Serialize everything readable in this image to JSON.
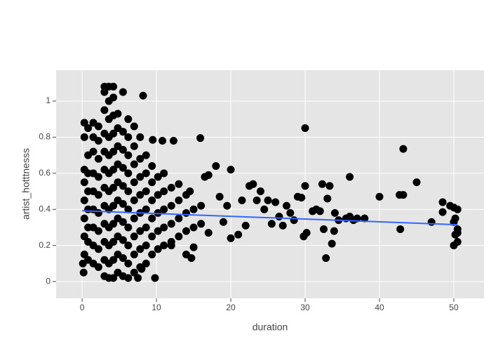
{
  "chart_data": {
    "type": "scatter",
    "x_label": "duration",
    "y_label": "artist_hotttnesss",
    "xlim": [
      -3.5,
      54.06
    ],
    "ylim": [
      -0.093,
      1.171
    ],
    "xticks": [
      0,
      10,
      20,
      30,
      40,
      50
    ],
    "yticks": [
      0,
      0.2,
      0.4,
      0.6,
      0.8,
      1
    ],
    "grid": true,
    "color": "#000000",
    "points": [
      [
        0.3,
        0.15
      ],
      [
        0.3,
        0.25
      ],
      [
        0.3,
        0.35
      ],
      [
        0.3,
        0.45
      ],
      [
        0.3,
        0.55
      ],
      [
        0.3,
        0.62
      ],
      [
        0.3,
        0.8
      ],
      [
        0.3,
        0.88
      ],
      [
        0.8,
        0.12
      ],
      [
        0.8,
        0.22
      ],
      [
        0.8,
        0.3
      ],
      [
        0.8,
        0.4
      ],
      [
        0.8,
        0.5
      ],
      [
        0.8,
        0.6
      ],
      [
        0.8,
        0.7
      ],
      [
        0.8,
        0.85
      ],
      [
        1.5,
        0.1
      ],
      [
        1.5,
        0.2
      ],
      [
        1.5,
        0.3
      ],
      [
        1.5,
        0.4
      ],
      [
        1.5,
        0.5
      ],
      [
        1.5,
        0.6
      ],
      [
        1.5,
        0.72
      ],
      [
        1.5,
        0.8
      ],
      [
        1.5,
        0.88
      ],
      [
        2.2,
        0.08
      ],
      [
        2.2,
        0.18
      ],
      [
        2.2,
        0.28
      ],
      [
        2.2,
        0.38
      ],
      [
        2.2,
        0.48
      ],
      [
        2.2,
        0.58
      ],
      [
        2.2,
        0.68
      ],
      [
        2.2,
        0.78
      ],
      [
        2.2,
        0.86
      ],
      [
        3,
        0.03
      ],
      [
        3,
        0.12
      ],
      [
        3,
        0.22
      ],
      [
        3,
        0.32
      ],
      [
        3,
        0.42
      ],
      [
        3,
        0.52
      ],
      [
        3,
        0.62
      ],
      [
        3,
        0.72
      ],
      [
        3,
        0.82
      ],
      [
        3,
        0.95
      ],
      [
        3,
        1.05
      ],
      [
        3,
        1.08
      ],
      [
        3.6,
        0.02
      ],
      [
        3.6,
        0.1
      ],
      [
        3.6,
        0.2
      ],
      [
        3.6,
        0.3
      ],
      [
        3.6,
        0.4
      ],
      [
        3.6,
        0.5
      ],
      [
        3.6,
        0.6
      ],
      [
        3.6,
        0.7
      ],
      [
        3.6,
        0.8
      ],
      [
        3.6,
        0.9
      ],
      [
        3.6,
        1.0
      ],
      [
        3.6,
        1.08
      ],
      [
        4.2,
        0.02
      ],
      [
        4.2,
        0.12
      ],
      [
        4.2,
        0.22
      ],
      [
        4.2,
        0.32
      ],
      [
        4.2,
        0.42
      ],
      [
        4.2,
        0.52
      ],
      [
        4.2,
        0.62
      ],
      [
        4.2,
        0.72
      ],
      [
        4.2,
        0.82
      ],
      [
        4.2,
        0.92
      ],
      [
        4.2,
        1.02
      ],
      [
        4.2,
        1.08
      ],
      [
        4.8,
        0.05
      ],
      [
        4.8,
        0.15
      ],
      [
        4.8,
        0.25
      ],
      [
        4.8,
        0.35
      ],
      [
        4.8,
        0.45
      ],
      [
        4.8,
        0.55
      ],
      [
        4.8,
        0.65
      ],
      [
        4.8,
        0.75
      ],
      [
        4.8,
        0.85
      ],
      [
        4.8,
        0.93
      ],
      [
        5.5,
        0.03
      ],
      [
        5.5,
        0.13
      ],
      [
        5.5,
        0.23
      ],
      [
        5.5,
        0.33
      ],
      [
        5.5,
        0.43
      ],
      [
        5.5,
        0.53
      ],
      [
        5.5,
        0.63
      ],
      [
        5.5,
        0.73
      ],
      [
        5.5,
        0.83
      ],
      [
        5.5,
        1.05
      ],
      [
        6.2,
        0.02
      ],
      [
        6.2,
        0.1
      ],
      [
        6.2,
        0.2
      ],
      [
        6.2,
        0.3
      ],
      [
        6.2,
        0.4
      ],
      [
        6.2,
        0.5
      ],
      [
        6.2,
        0.6
      ],
      [
        6.2,
        0.7
      ],
      [
        6.2,
        0.8
      ],
      [
        6.2,
        0.9
      ],
      [
        7,
        0.05
      ],
      [
        7,
        0.15
      ],
      [
        7,
        0.25
      ],
      [
        7,
        0.35
      ],
      [
        7,
        0.45
      ],
      [
        7,
        0.55
      ],
      [
        7,
        0.65
      ],
      [
        7,
        0.75
      ],
      [
        7,
        0.86
      ],
      [
        7.8,
        0.08
      ],
      [
        7.8,
        0.18
      ],
      [
        7.8,
        0.28
      ],
      [
        7.8,
        0.38
      ],
      [
        7.8,
        0.48
      ],
      [
        7.8,
        0.58
      ],
      [
        7.8,
        0.68
      ],
      [
        7.8,
        0.8
      ],
      [
        8.6,
        0.1
      ],
      [
        8.6,
        0.2
      ],
      [
        8.6,
        0.3
      ],
      [
        8.6,
        0.4
      ],
      [
        8.6,
        0.5
      ],
      [
        8.6,
        0.6
      ],
      [
        8.6,
        0.7
      ],
      [
        9.4,
        0.15
      ],
      [
        9.4,
        0.25
      ],
      [
        9.4,
        0.35
      ],
      [
        9.4,
        0.45
      ],
      [
        9.4,
        0.55
      ],
      [
        9.4,
        0.64
      ],
      [
        10.2,
        0.18
      ],
      [
        10.2,
        0.28
      ],
      [
        10.2,
        0.38
      ],
      [
        10.2,
        0.48
      ],
      [
        10.2,
        0.58
      ],
      [
        11,
        0.2
      ],
      [
        11,
        0.3
      ],
      [
        11,
        0.4
      ],
      [
        11,
        0.5
      ],
      [
        11,
        0.6
      ],
      [
        12,
        0.22
      ],
      [
        12,
        0.32
      ],
      [
        12,
        0.42
      ],
      [
        12,
        0.52
      ],
      [
        13,
        0.25
      ],
      [
        13,
        0.35
      ],
      [
        13,
        0.45
      ],
      [
        14,
        0.28
      ],
      [
        14,
        0.38
      ],
      [
        14,
        0.48
      ],
      [
        15,
        0.3
      ],
      [
        15,
        0.4
      ],
      [
        16,
        0.32
      ],
      [
        16,
        0.42
      ],
      [
        8.2,
        1.03
      ],
      [
        15.9,
        0.795
      ],
      [
        20,
        0.62
      ],
      [
        18,
        0.64
      ],
      [
        12.3,
        0.78
      ],
      [
        10.8,
        0.78
      ],
      [
        9.5,
        0.785
      ],
      [
        30,
        0.85
      ],
      [
        43.2,
        0.735
      ],
      [
        36,
        0.58
      ],
      [
        45,
        0.55
      ],
      [
        40,
        0.47
      ],
      [
        42.7,
        0.48
      ],
      [
        43.2,
        0.48
      ],
      [
        42.8,
        0.29
      ],
      [
        48.5,
        0.44
      ],
      [
        48.5,
        0.385
      ],
      [
        49.5,
        0.42
      ],
      [
        50,
        0.41
      ],
      [
        50.5,
        0.4
      ],
      [
        50.2,
        0.35
      ],
      [
        50,
        0.33
      ],
      [
        50.5,
        0.29
      ],
      [
        50.2,
        0.26
      ],
      [
        50.5,
        0.22
      ],
      [
        50,
        0.2
      ],
      [
        50.5,
        0.27
      ],
      [
        47,
        0.33
      ],
      [
        32.8,
        0.13
      ],
      [
        33.6,
        0.21
      ],
      [
        32.5,
        0.29
      ],
      [
        33.9,
        0.28
      ],
      [
        29.8,
        0.25
      ],
      [
        30.2,
        0.27
      ],
      [
        32.3,
        0.54
      ],
      [
        33.3,
        0.53
      ],
      [
        30,
        0.53
      ],
      [
        29,
        0.47
      ],
      [
        29.5,
        0.465
      ],
      [
        31.5,
        0.4
      ],
      [
        32,
        0.39
      ],
      [
        33,
        0.46
      ],
      [
        34,
        0.38
      ],
      [
        35.5,
        0.35
      ],
      [
        36,
        0.36
      ],
      [
        37,
        0.35
      ],
      [
        36.5,
        0.34
      ],
      [
        27.5,
        0.42
      ],
      [
        26,
        0.44
      ],
      [
        28,
        0.38
      ],
      [
        27,
        0.31
      ],
      [
        26.5,
        0.36
      ],
      [
        25,
        0.45
      ],
      [
        24,
        0.5
      ],
      [
        23,
        0.54
      ],
      [
        22.5,
        0.53
      ],
      [
        23.5,
        0.45
      ],
      [
        21,
        0.26
      ],
      [
        20,
        0.24
      ],
      [
        22,
        0.31
      ],
      [
        19,
        0.33
      ],
      [
        17,
        0.27
      ],
      [
        14.7,
        0.13
      ],
      [
        14,
        0.15
      ],
      [
        9.8,
        0.02
      ],
      [
        7.5,
        0.02
      ],
      [
        0.2,
        0.05
      ],
      [
        0.1,
        0.1
      ],
      [
        8,
        0.07
      ],
      [
        12,
        0.2
      ],
      [
        15,
        0.19
      ],
      [
        16.5,
        0.58
      ],
      [
        17,
        0.59
      ],
      [
        18.5,
        0.47
      ],
      [
        13,
        0.54
      ],
      [
        14.5,
        0.5
      ],
      [
        19.5,
        0.42
      ],
      [
        21.5,
        0.45
      ],
      [
        24.5,
        0.4
      ],
      [
        25.5,
        0.32
      ],
      [
        28.5,
        0.34
      ],
      [
        31,
        0.39
      ],
      [
        34.5,
        0.34
      ],
      [
        38,
        0.35
      ]
    ],
    "trend": {
      "color": "#3366ff",
      "x": [
        0,
        50.5
      ],
      "values": [
        0.392,
        0.315
      ]
    }
  }
}
